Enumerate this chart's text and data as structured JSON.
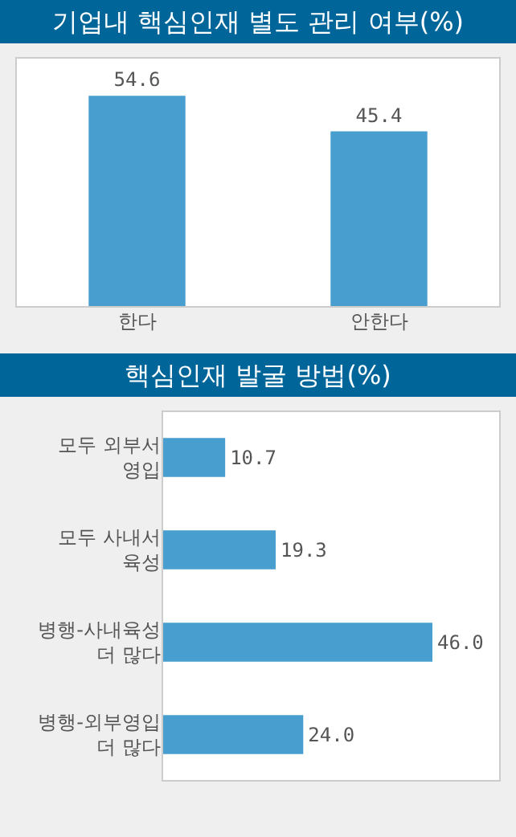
{
  "chart_data": [
    {
      "type": "bar",
      "title": "기업내 핵심인재 별도 관리 여부(%)",
      "categories": [
        "한다",
        "안한다"
      ],
      "values": [
        54.6,
        45.4
      ],
      "value_labels": [
        "54.6",
        "45.4"
      ],
      "color": "#479ecf"
    },
    {
      "type": "bar",
      "title": "핵심인재 발굴 방법(%)",
      "orientation": "horizontal",
      "categories": [
        "모두 외부서 영입",
        "모두 사내서 육성",
        "병행-사내육성 더 많다",
        "병행-외부영입 더 많다"
      ],
      "values": [
        10.7,
        19.3,
        46.0,
        24.0
      ],
      "value_labels": [
        "10.7",
        "19.3",
        "46.0",
        "24.0"
      ],
      "color": "#479ecf"
    }
  ]
}
